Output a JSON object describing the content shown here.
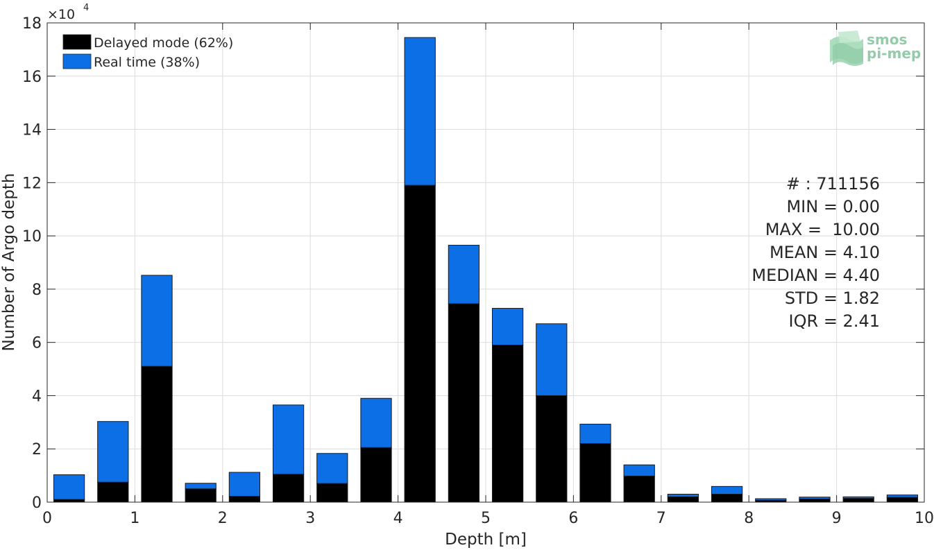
{
  "chart_data": {
    "type": "bar",
    "stacked": true,
    "xlabel": "Depth [m]",
    "ylabel": "Number of Argo depth",
    "exponent_label": "×10",
    "exponent_power": "4",
    "xlim": [
      0,
      10
    ],
    "ylim": [
      0,
      18
    ],
    "xticks": [
      "0",
      "1",
      "2",
      "3",
      "4",
      "5",
      "6",
      "7",
      "8",
      "9",
      "10"
    ],
    "yticks": [
      "0",
      "2",
      "4",
      "6",
      "8",
      "10",
      "12",
      "14",
      "16",
      "18"
    ],
    "grid": true,
    "legend_position": "top-left",
    "bin_centers": [
      0.25,
      0.75,
      1.25,
      1.75,
      2.25,
      2.75,
      3.25,
      3.75,
      4.25,
      4.75,
      5.25,
      5.75,
      6.25,
      6.75,
      7.25,
      7.75,
      8.25,
      8.75,
      9.25,
      9.75
    ],
    "series": [
      {
        "name": "Delayed mode (62%)",
        "color": "#000000",
        "values": [
          0.1,
          0.75,
          5.1,
          0.5,
          0.22,
          1.05,
          0.7,
          2.05,
          11.9,
          7.45,
          5.9,
          4.0,
          2.2,
          0.98,
          0.2,
          0.3,
          0.07,
          0.12,
          0.14,
          0.18
        ]
      },
      {
        "name": "Real time (38%)",
        "color": "#0d6fe6",
        "values": [
          0.93,
          2.28,
          3.42,
          0.21,
          0.9,
          2.6,
          1.13,
          1.85,
          5.55,
          2.2,
          1.38,
          2.7,
          0.73,
          0.42,
          0.1,
          0.29,
          0.06,
          0.07,
          0.06,
          0.09
        ]
      }
    ],
    "stats": [
      "# : 711156",
      "MIN = 0.00",
      "MAX =  10.00",
      "MEAN = 4.10",
      "MEDIAN = 4.40",
      "STD = 1.82",
      "IQR = 2.41"
    ],
    "logo": {
      "line1": "smos",
      "line2": "pi-mep",
      "color": "#7fc49a"
    }
  }
}
